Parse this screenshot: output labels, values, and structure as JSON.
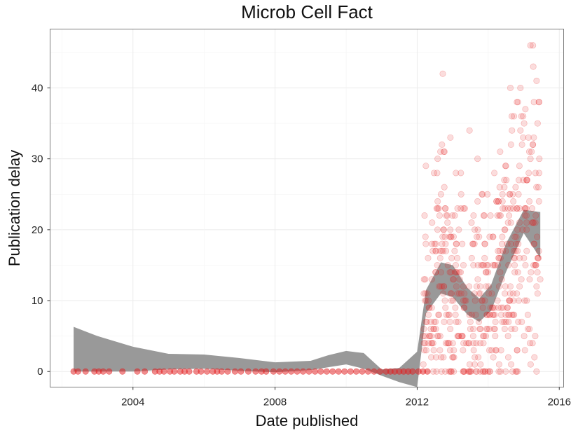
{
  "chart_data": {
    "type": "scatter",
    "title": "Microb Cell Fact",
    "xlabel": "Date published",
    "ylabel": "Publication delay",
    "xlim": [
      "2001-09-01",
      "2016-02-15"
    ],
    "ylim": [
      -2.2,
      48.3
    ],
    "x_ticks": [
      {
        "value": "2004-01-01",
        "label": "2004"
      },
      {
        "value": "2008-01-01",
        "label": "2008"
      },
      {
        "value": "2012-01-01",
        "label": "2012"
      },
      {
        "value": "2016-01-01",
        "label": "2016"
      }
    ],
    "y_ticks": [
      0,
      10,
      20,
      30,
      40
    ],
    "grid": true,
    "colors": {
      "points": "#e41a1c",
      "smooth_band": "#999999",
      "grid": "#ebebeb",
      "border": "#7f7f7f"
    },
    "zero_delay_dates": [
      "2002-05-01",
      "2002-06-15",
      "2002-09-01",
      "2002-12-01",
      "2003-01-15",
      "2003-03-01",
      "2003-05-01",
      "2003-09-15",
      "2004-02-15",
      "2004-05-01",
      "2004-08-15",
      "2004-10-01",
      "2004-11-15",
      "2005-01-15",
      "2005-03-01",
      "2005-05-01",
      "2005-06-15",
      "2005-08-01",
      "2005-10-15",
      "2005-12-01",
      "2006-02-01",
      "2006-04-01",
      "2006-05-15",
      "2006-07-01",
      "2006-09-01",
      "2006-11-15",
      "2007-01-15",
      "2007-04-01",
      "2007-06-15",
      "2007-08-15",
      "2007-10-01",
      "2007-12-15",
      "2008-02-15",
      "2008-04-15",
      "2008-06-15",
      "2008-08-15",
      "2008-10-15",
      "2008-12-15",
      "2009-02-15",
      "2009-04-15",
      "2009-06-15",
      "2009-08-15",
      "2009-10-15",
      "2009-12-15",
      "2010-02-15",
      "2010-04-15",
      "2010-06-15",
      "2010-08-15",
      "2010-10-15",
      "2010-12-15",
      "2011-02-15",
      "2011-04-01",
      "2011-05-15",
      "2011-07-01",
      "2011-08-15",
      "2011-10-01",
      "2011-11-15",
      "2012-01-15",
      "2012-03-01",
      "2012-04-15"
    ],
    "scatter_x_range": [
      "2012-03-01",
      "2015-06-20"
    ],
    "scatter_delay_range": [
      0,
      46
    ],
    "smooth_band": [
      {
        "date": "2002-05-01",
        "lower": 0.0,
        "upper": 6.3
      },
      {
        "date": "2003-01-01",
        "lower": 0.0,
        "upper": 5.0
      },
      {
        "date": "2004-01-01",
        "lower": 0.0,
        "upper": 3.5
      },
      {
        "date": "2005-01-01",
        "lower": 0.3,
        "upper": 2.5
      },
      {
        "date": "2006-01-01",
        "lower": 0.4,
        "upper": 2.4
      },
      {
        "date": "2007-01-01",
        "lower": 0.1,
        "upper": 1.9
      },
      {
        "date": "2008-01-01",
        "lower": -0.1,
        "upper": 1.3
      },
      {
        "date": "2009-01-01",
        "lower": 0.2,
        "upper": 1.5
      },
      {
        "date": "2009-07-01",
        "lower": 0.6,
        "upper": 2.3
      },
      {
        "date": "2010-01-01",
        "lower": 1.0,
        "upper": 2.9
      },
      {
        "date": "2010-07-01",
        "lower": 0.4,
        "upper": 2.6
      },
      {
        "date": "2011-01-01",
        "lower": -0.6,
        "upper": 0.3
      },
      {
        "date": "2011-07-01",
        "lower": -1.5,
        "upper": 0.5
      },
      {
        "date": "2012-01-01",
        "lower": -2.2,
        "upper": 2.8
      },
      {
        "date": "2012-04-01",
        "lower": 8.2,
        "upper": 11.5
      },
      {
        "date": "2012-09-01",
        "lower": 11.0,
        "upper": 15.4
      },
      {
        "date": "2013-01-01",
        "lower": 10.5,
        "upper": 15.0
      },
      {
        "date": "2013-06-01",
        "lower": 8.0,
        "upper": 11.8
      },
      {
        "date": "2013-10-01",
        "lower": 7.0,
        "upper": 10.3
      },
      {
        "date": "2014-02-01",
        "lower": 8.6,
        "upper": 12.3
      },
      {
        "date": "2014-07-01",
        "lower": 14.0,
        "upper": 18.0
      },
      {
        "date": "2015-01-01",
        "lower": 19.5,
        "upper": 22.8
      },
      {
        "date": "2015-06-20",
        "lower": 16.0,
        "upper": 22.5
      }
    ]
  }
}
